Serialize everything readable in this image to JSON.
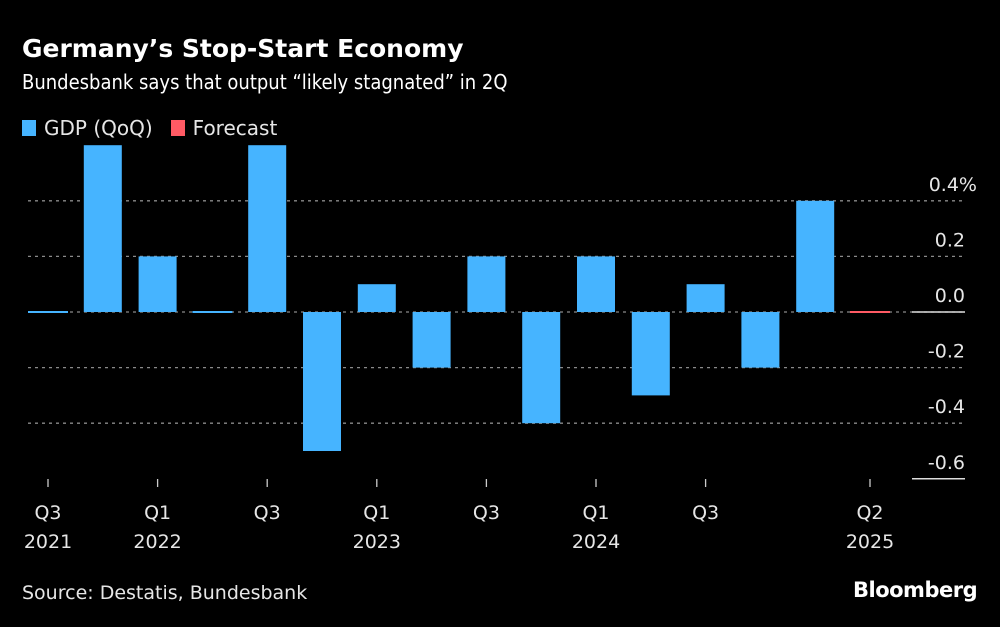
{
  "header": {
    "title": "Germany’s Stop-Start Economy",
    "subtitle": "Bundesbank says that output “likely stagnated” in 2Q"
  },
  "legend": [
    {
      "label": "GDP (QoQ)",
      "color": "#46b4ff"
    },
    {
      "label": "Forecast",
      "color": "#ff5a64"
    }
  ],
  "footer": {
    "source": "Source: Destatis, Bundesbank",
    "brand": "Bloomberg"
  },
  "chart_data": {
    "type": "bar",
    "title": "Germany’s Stop-Start Economy",
    "subtitle": "Bundesbank says that output “likely stagnated” in 2Q",
    "xlabel": "",
    "ylabel": "",
    "ylim": [
      -0.6,
      0.4
    ],
    "y_ticks": [
      0.4,
      0.2,
      0.0,
      -0.2,
      -0.4,
      -0.6
    ],
    "y_tick_labels": [
      "0.4%",
      "0.2",
      "0.0",
      "-0.2",
      "-0.4",
      "-0.6"
    ],
    "grid": true,
    "legend_position": "top-left",
    "categories": [
      "Q3 2021",
      "Q4 2021",
      "Q1 2022",
      "Q2 2022",
      "Q3 2022",
      "Q4 2022",
      "Q1 2023",
      "Q2 2023",
      "Q3 2023",
      "Q4 2023",
      "Q1 2024",
      "Q2 2024",
      "Q3 2024",
      "Q4 2024",
      "Q1 2025",
      "Q2 2025"
    ],
    "x_tick_labels": [
      {
        "index": 0,
        "line1": "Q3",
        "line2": "2021"
      },
      {
        "index": 2,
        "line1": "Q1",
        "line2": "2022"
      },
      {
        "index": 4,
        "line1": "Q3",
        "line2": ""
      },
      {
        "index": 6,
        "line1": "Q1",
        "line2": "2023"
      },
      {
        "index": 8,
        "line1": "Q3",
        "line2": ""
      },
      {
        "index": 10,
        "line1": "Q1",
        "line2": "2024"
      },
      {
        "index": 12,
        "line1": "Q3",
        "line2": ""
      },
      {
        "index": 15,
        "line1": "Q2",
        "line2": "2025"
      }
    ],
    "series": [
      {
        "name": "GDP (QoQ)",
        "color": "#46b4ff",
        "values": [
          0.0,
          0.6,
          0.2,
          0.0,
          0.6,
          -0.5,
          0.1,
          -0.2,
          0.2,
          -0.4,
          0.2,
          -0.3,
          0.1,
          -0.2,
          0.4,
          null
        ]
      },
      {
        "name": "Forecast",
        "color": "#ff5a64",
        "values": [
          null,
          null,
          null,
          null,
          null,
          null,
          null,
          null,
          null,
          null,
          null,
          null,
          null,
          null,
          null,
          0.0
        ]
      }
    ]
  }
}
